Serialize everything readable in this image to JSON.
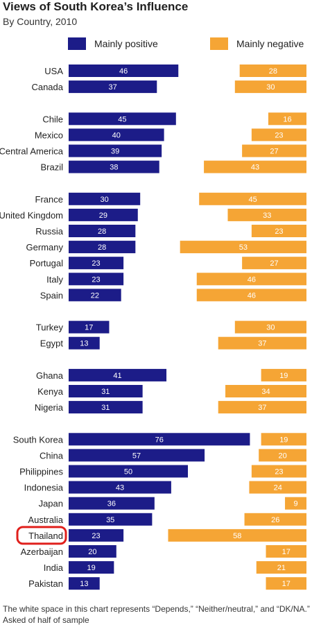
{
  "header": {
    "title": "Views of South Korea’s Influence",
    "subtitle": "By Country, 2010"
  },
  "legend": {
    "positive_label": "Mainly positive",
    "negative_label": "Mainly negative",
    "positive_color": "#1c1c88",
    "negative_color": "#f5a535"
  },
  "footnote": {
    "line1": "The white space in this chart represents “Depends,” “Neither/neutral,” and “DK/NA.”",
    "line2": "Asked of half of sample"
  },
  "chart_data": {
    "type": "bar",
    "title": "Views of South Korea’s Influence",
    "subtitle": "By Country, 2010",
    "categories": [
      "USA",
      "Canada",
      "Chile",
      "Mexico",
      "Central America",
      "Brazil",
      "France",
      "United Kingdom",
      "Russia",
      "Germany",
      "Portugal",
      "Italy",
      "Spain",
      "Turkey",
      "Egypt",
      "Ghana",
      "Kenya",
      "Nigeria",
      "South Korea",
      "China",
      "Philippines",
      "Indonesia",
      "Japan",
      "Australia",
      "Thailand",
      "Azerbaijan",
      "India",
      "Pakistan"
    ],
    "groups": [
      [
        "USA",
        "Canada"
      ],
      [
        "Chile",
        "Mexico",
        "Central America",
        "Brazil"
      ],
      [
        "France",
        "United Kingdom",
        "Russia",
        "Germany",
        "Portugal",
        "Italy",
        "Spain"
      ],
      [
        "Turkey",
        "Egypt"
      ],
      [
        "Ghana",
        "Kenya",
        "Nigeria"
      ],
      [
        "South Korea",
        "China",
        "Philippines",
        "Indonesia",
        "Japan",
        "Australia",
        "Thailand",
        "Azerbaijan",
        "India",
        "Pakistan"
      ]
    ],
    "series": [
      {
        "name": "Mainly positive",
        "values": [
          46,
          37,
          45,
          40,
          39,
          38,
          30,
          29,
          28,
          28,
          23,
          23,
          22,
          17,
          13,
          41,
          31,
          31,
          76,
          57,
          50,
          43,
          36,
          35,
          23,
          20,
          19,
          13
        ]
      },
      {
        "name": "Mainly negative",
        "values": [
          28,
          30,
          16,
          23,
          27,
          43,
          45,
          33,
          23,
          53,
          27,
          46,
          46,
          30,
          37,
          19,
          34,
          37,
          19,
          20,
          23,
          24,
          9,
          26,
          58,
          17,
          21,
          17
        ]
      }
    ],
    "highlighted_category": "Thailand",
    "highlight_color": "#e0201c",
    "legend_position": "top",
    "grid": false
  }
}
